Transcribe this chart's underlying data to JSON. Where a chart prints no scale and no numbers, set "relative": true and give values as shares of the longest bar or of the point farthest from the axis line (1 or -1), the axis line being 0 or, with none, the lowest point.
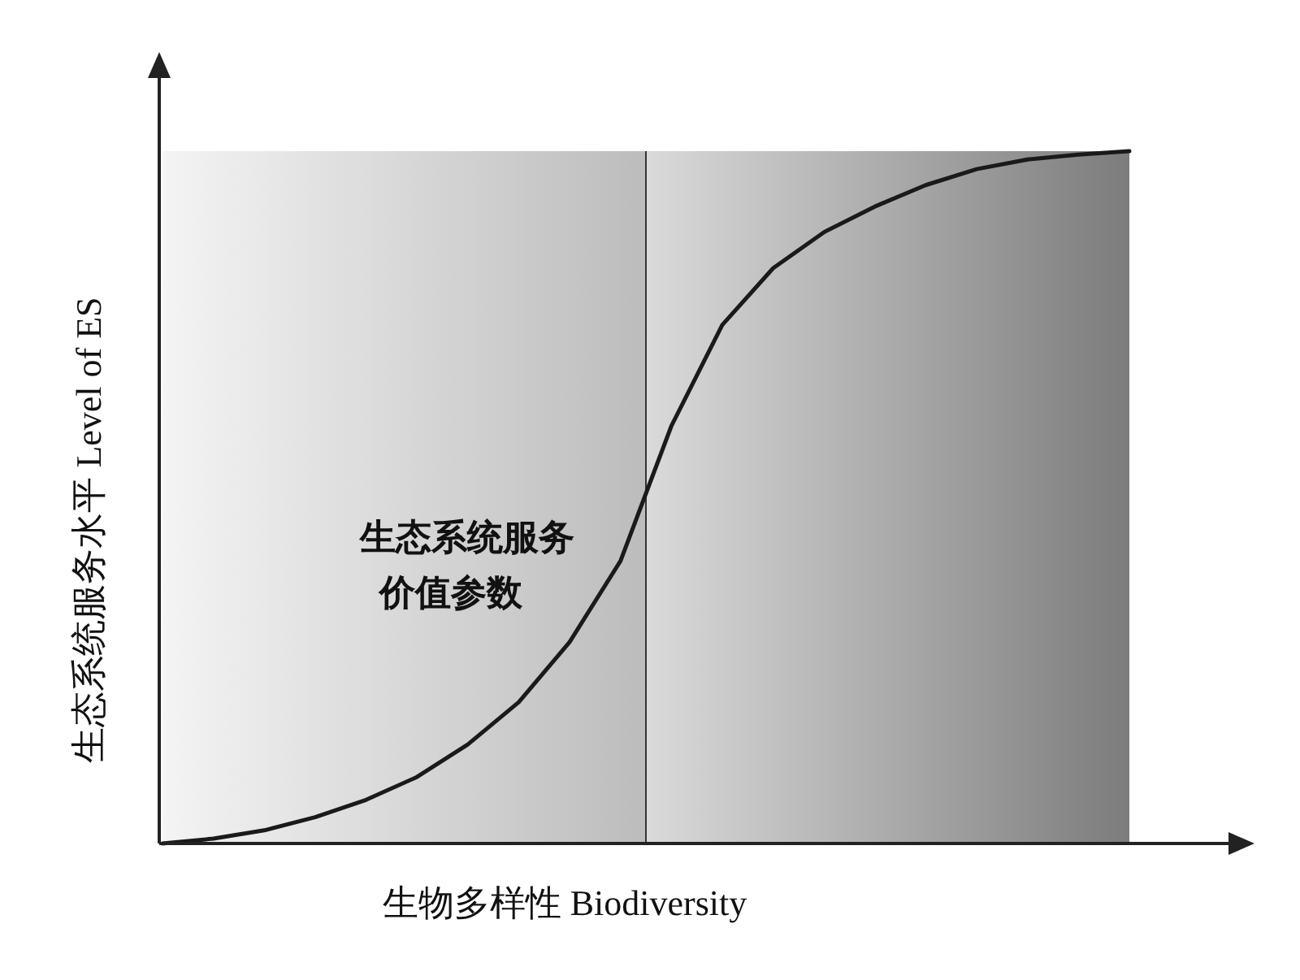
{
  "chart_data": {
    "type": "line",
    "relative": true,
    "xlabel": "生物多样性 Biodiversity",
    "ylabel": "生态系统服务水平 Level of ES",
    "categories": [
      null,
      null,
      null,
      null,
      null,
      null,
      null,
      null,
      null,
      null,
      null,
      null,
      null,
      null,
      null,
      null,
      null,
      null,
      null,
      null
    ],
    "series": [
      {
        "color": "#1a1a1a",
        "values": [
          0,
          0.007,
          0.019,
          0.038,
          0.063,
          0.096,
          0.143,
          0.204,
          0.291,
          0.408,
          0.603,
          0.749,
          0.831,
          0.883,
          0.92,
          0.951,
          0.974,
          0.988,
          0.995,
          1
        ]
      }
    ],
    "annotations": [
      "生态系统服务价值参数"
    ],
    "marker": "none",
    "line_style": "solid"
  }
}
